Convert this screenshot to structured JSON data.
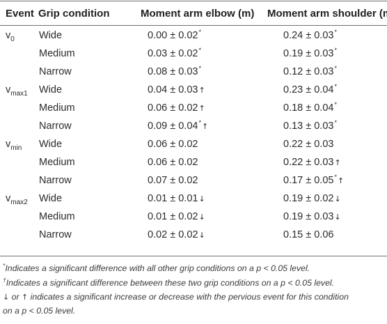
{
  "table": {
    "headers": {
      "event": "Event",
      "grip": "Grip condition",
      "elbow": "Moment arm elbow (m)",
      "shoulder": "Moment arm shoulder (m)"
    },
    "events": {
      "v0": {
        "base": "v",
        "sub": "0"
      },
      "vmax1": {
        "base": "v",
        "sub": "max1"
      },
      "vmin": {
        "base": "v",
        "sub": "min"
      },
      "vmax2": {
        "base": "v",
        "sub": "max2"
      }
    },
    "grips": {
      "wide": "Wide",
      "medium": "Medium",
      "narrow": "Narrow"
    },
    "rows": [
      {
        "elbow": {
          "value": "0.00 ± 0.02",
          "mark": "*"
        },
        "shoulder": {
          "value": "0.24 ± 0.03",
          "mark": "*"
        }
      },
      {
        "elbow": {
          "value": "0.03 ± 0.02",
          "mark": "*"
        },
        "shoulder": {
          "value": "0.19 ± 0.03",
          "mark": "*"
        }
      },
      {
        "elbow": {
          "value": "0.08 ± 0.03",
          "mark": "*"
        },
        "shoulder": {
          "value": "0.12 ± 0.03",
          "mark": "*"
        }
      },
      {
        "elbow": {
          "value": "0.04 ± 0.03",
          "arrow": "↑"
        },
        "shoulder": {
          "value": "0.23 ± 0.04",
          "mark": "*"
        }
      },
      {
        "elbow": {
          "value": "0.06 ± 0.02",
          "arrow": "↑"
        },
        "shoulder": {
          "value": "0.18 ± 0.04",
          "mark": "*"
        }
      },
      {
        "elbow": {
          "value": "0.09 ± 0.04",
          "mark": "*",
          "arrow": "↑"
        },
        "shoulder": {
          "value": "0.13 ± 0.03",
          "mark": "*"
        }
      },
      {
        "elbow": {
          "value": "0.06 ± 0.02"
        },
        "shoulder": {
          "value": "0.22 ± 0.03"
        }
      },
      {
        "elbow": {
          "value": "0.06 ± 0.02"
        },
        "shoulder": {
          "value": "0.22 ± 0.03",
          "arrow": "↑"
        }
      },
      {
        "elbow": {
          "value": "0.07 ± 0.02"
        },
        "shoulder": {
          "value": "0.17 ± 0.05",
          "mark": "*",
          "arrow": "↑"
        }
      },
      {
        "elbow": {
          "value": "0.01 ± 0.01",
          "arrow": "↓"
        },
        "shoulder": {
          "value": "0.19 ± 0.02",
          "arrow": "↓"
        }
      },
      {
        "elbow": {
          "value": "0.01 ± 0.02",
          "arrow": "↓"
        },
        "shoulder": {
          "value": "0.19 ± 0.03",
          "arrow": "↓"
        }
      },
      {
        "elbow": {
          "value": "0.02 ± 0.02",
          "arrow": "↓"
        },
        "shoulder": {
          "value": "0.15 ± 0.06"
        }
      }
    ]
  },
  "footnotes": {
    "f1_mark": "*",
    "f1_text": "Indicates a significant difference with all other grip conditions on a p < 0.05 level.",
    "f2_mark": "†",
    "f2_text": "Indicates a significant difference between these two grip conditions on a p < 0.05 level.",
    "f3_arrow_down": "↓",
    "f3_or": " or ",
    "f3_arrow_up": "↑",
    "f3_text": " indicates a significant increase or decrease with the pervious event for this condition",
    "f4_text": "on a p < 0.05 level."
  }
}
